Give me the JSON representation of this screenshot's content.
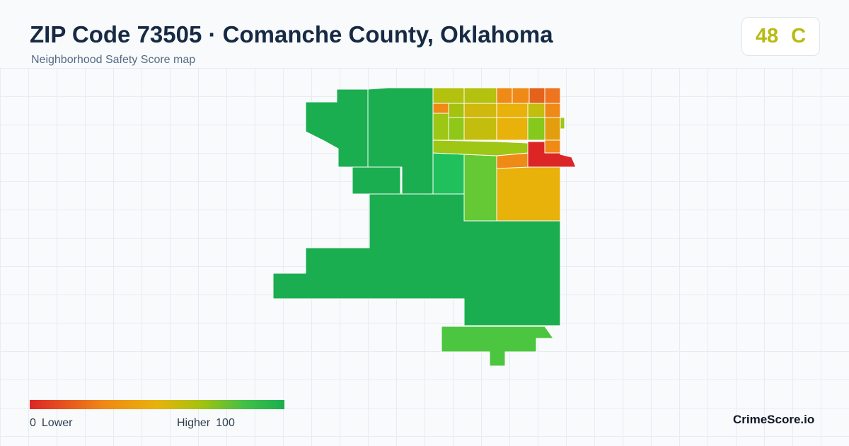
{
  "header": {
    "title": "ZIP Code 73505 · Comanche County, Oklahoma",
    "subtitle": "Neighborhood Safety Score map"
  },
  "score": {
    "value": "48",
    "grade": "C",
    "color": "#b8bb12"
  },
  "legend": {
    "min": "0",
    "low_label": "Lower",
    "high_label": "Higher",
    "max": "100",
    "colors": [
      "#dc2626",
      "#f08a16",
      "#e8b20b",
      "#a5c20f",
      "#3fbf48",
      "#1aae50"
    ]
  },
  "brand": {
    "name": "CrimeScore.io"
  },
  "palette": {
    "background": "#f8fafc",
    "gridline": "#e6edf2",
    "border": "#ffffff"
  }
}
